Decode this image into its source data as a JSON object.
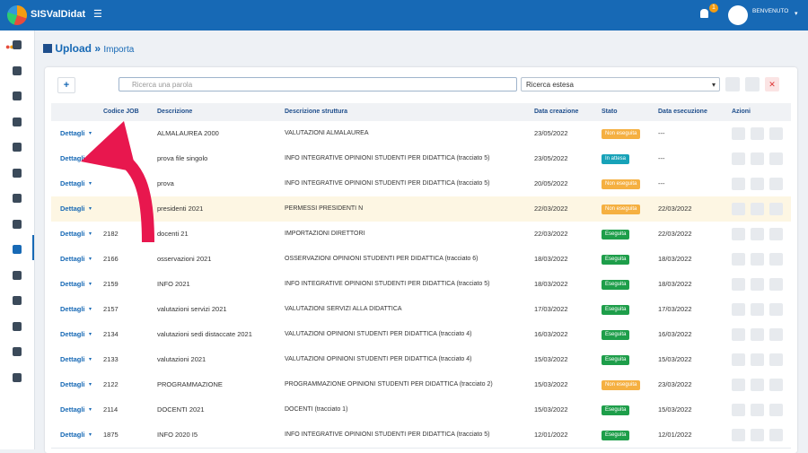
{
  "header": {
    "brand": "SISValDidat",
    "notifications": "1",
    "user": "BENVENUTO"
  },
  "breadcrumb": {
    "title": "Upload",
    "separator": "»",
    "current": "Importa"
  },
  "toolbar": {
    "search_placeholder": "Ricerca una parola",
    "extended_search": "Ricerca estesa"
  },
  "table": {
    "columns": [
      "Codice JOB",
      "Descrizione",
      "Descrizione struttura",
      "Data creazione",
      "Stato",
      "Data esecuzione",
      "Azioni"
    ],
    "row_action": "Dettagli",
    "rows": [
      [
        null,
        "ALMALAUREA 2000",
        "VALUTAZIONI ALMALAUREA",
        "23/05/2022",
        "Non eseguita",
        "---"
      ],
      [
        null,
        "prova file singolo",
        "INFO INTEGRATIVE OPINIONI STUDENTI PER DIDATTICA (tracciato 5)",
        "23/05/2022",
        "In attesa",
        "---"
      ],
      [
        null,
        "prova",
        "INFO INTEGRATIVE OPINIONI STUDENTI PER DIDATTICA (tracciato 5)",
        "20/05/2022",
        "Non eseguita",
        "---"
      ],
      [
        null,
        "presidenti 2021",
        "PERMESSI PRESIDENTI N",
        "22/03/2022",
        "Non eseguita",
        "22/03/2022"
      ],
      [
        "2182",
        "docenti 21",
        "IMPORTAZIONI DIRETTORI",
        "22/03/2022",
        "Eseguita",
        "22/03/2022"
      ],
      [
        "2166",
        "osservazioni 2021",
        "OSSERVAZIONI OPINIONI STUDENTI PER DIDATTICA (tracciato 6)",
        "18/03/2022",
        "Eseguita",
        "18/03/2022"
      ],
      [
        "2159",
        "INFO 2021",
        "INFO INTEGRATIVE OPINIONI STUDENTI PER DIDATTICA (tracciato 5)",
        "18/03/2022",
        "Eseguita",
        "18/03/2022"
      ],
      [
        "2157",
        "valutazioni servizi 2021",
        "VALUTAZIONI SERVIZI ALLA DIDATTICA",
        "17/03/2022",
        "Eseguita",
        "17/03/2022"
      ],
      [
        "2134",
        "valutazioni sedi distaccate 2021",
        "VALUTAZIONI OPINIONI STUDENTI PER DIDATTICA (tracciato 4)",
        "16/03/2022",
        "Eseguita",
        "16/03/2022"
      ],
      [
        "2133",
        "valutazioni 2021",
        "VALUTAZIONI OPINIONI STUDENTI PER DIDATTICA (tracciato 4)",
        "15/03/2022",
        "Eseguita",
        "15/03/2022"
      ],
      [
        "2122",
        "PROGRAMMAZIONE",
        "PROGRAMMAZIONE OPINIONI STUDENTI PER DIDATTICA (tracciato 2)",
        "15/03/2022",
        "Non eseguita",
        "23/03/2022"
      ],
      [
        "2114",
        "DOCENTI 2021",
        "DOCENTI (tracciato 1)",
        "15/03/2022",
        "Eseguita",
        "15/03/2022"
      ],
      [
        "1875",
        "INFO 2020 I5",
        "INFO INTEGRATIVE OPINIONI STUDENTI PER DIDATTICA (tracciato 5)",
        "12/01/2022",
        "Eseguita",
        "12/01/2022"
      ]
    ]
  }
}
